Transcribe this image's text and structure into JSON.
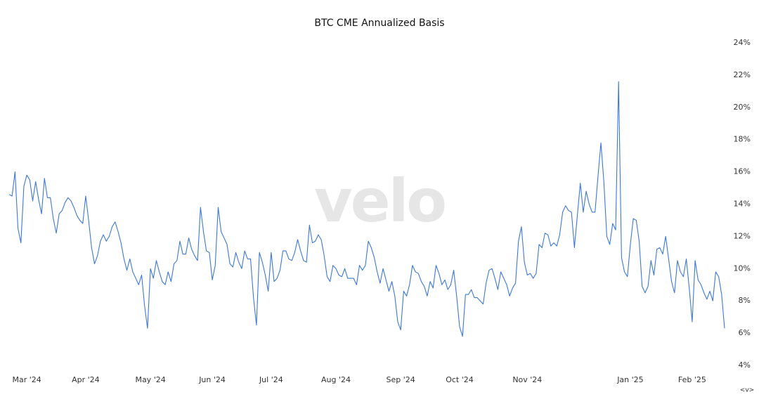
{
  "chart_data": {
    "type": "line",
    "title": "BTC CME Annualized Basis",
    "watermark": "velo",
    "nav_hint": "<v>",
    "color": "#3b78d9",
    "grid": false,
    "y_axis_side": "right",
    "ylim": [
      4,
      24
    ],
    "yticks": [
      {
        "value": 4,
        "label": "4%"
      },
      {
        "value": 6,
        "label": "6%"
      },
      {
        "value": 8,
        "label": "8%"
      },
      {
        "value": 10,
        "label": "10%"
      },
      {
        "value": 12,
        "label": "12%"
      },
      {
        "value": 14,
        "label": "14%"
      },
      {
        "value": 16,
        "label": "16%"
      },
      {
        "value": 18,
        "label": "18%"
      },
      {
        "value": 20,
        "label": "20%"
      },
      {
        "value": 22,
        "label": "22%"
      },
      {
        "value": 24,
        "label": "24%"
      }
    ],
    "categories": [
      null,
      null,
      null,
      null,
      null,
      null,
      "Mar '24",
      null,
      null,
      null,
      null,
      null,
      null,
      null,
      null,
      null,
      null,
      null,
      null,
      null,
      null,
      null,
      null,
      null,
      null,
      null,
      "Apr '24",
      null,
      null,
      null,
      null,
      null,
      null,
      null,
      null,
      null,
      null,
      null,
      null,
      null,
      null,
      null,
      null,
      null,
      null,
      null,
      null,
      null,
      "May '24",
      null,
      null,
      null,
      null,
      null,
      null,
      null,
      null,
      null,
      null,
      null,
      null,
      null,
      null,
      null,
      null,
      null,
      null,
      null,
      null,
      "Jun '24",
      null,
      null,
      null,
      null,
      null,
      null,
      null,
      null,
      null,
      null,
      null,
      null,
      null,
      null,
      null,
      null,
      null,
      null,
      null,
      "Jul '24",
      null,
      null,
      null,
      null,
      null,
      null,
      null,
      null,
      null,
      null,
      null,
      null,
      null,
      null,
      null,
      null,
      null,
      null,
      null,
      null,
      null,
      "Aug '24",
      null,
      null,
      null,
      null,
      null,
      null,
      null,
      null,
      null,
      null,
      null,
      null,
      null,
      null,
      null,
      null,
      null,
      null,
      null,
      null,
      null,
      "Sep '24",
      null,
      null,
      null,
      null,
      null,
      null,
      null,
      null,
      null,
      null,
      null,
      null,
      null,
      null,
      null,
      null,
      null,
      null,
      null,
      "Oct '24",
      null,
      null,
      null,
      null,
      null,
      null,
      null,
      null,
      null,
      null,
      null,
      null,
      null,
      null,
      null,
      null,
      null,
      null,
      null,
      null,
      null,
      null,
      "Nov '24",
      null,
      null,
      null,
      null,
      null,
      null,
      null,
      null,
      null,
      null,
      null,
      null,
      null,
      null,
      null,
      null,
      null,
      null,
      null,
      null,
      null,
      null,
      null,
      null,
      null,
      null,
      null,
      null,
      null,
      null,
      null,
      null,
      null,
      null,
      "Jan '25",
      null,
      null,
      null,
      null,
      null,
      null,
      null,
      null,
      null,
      null,
      null,
      null,
      null,
      null,
      null,
      null,
      null,
      null,
      null,
      null,
      "Feb '25",
      null,
      null,
      null,
      null,
      null,
      null,
      null,
      null,
      null,
      null,
      null
    ],
    "values": [
      14.6,
      14.5,
      16.0,
      12.5,
      11.6,
      15.1,
      15.8,
      15.5,
      14.2,
      15.4,
      14.3,
      13.4,
      15.6,
      14.4,
      14.4,
      13.1,
      12.2,
      13.4,
      13.6,
      14.1,
      14.4,
      14.2,
      13.8,
      13.3,
      13.0,
      12.8,
      14.5,
      13.0,
      11.3,
      10.3,
      10.8,
      11.7,
      12.1,
      11.7,
      12.0,
      12.6,
      12.9,
      12.3,
      11.6,
      10.6,
      9.9,
      10.6,
      9.8,
      9.4,
      9.0,
      9.6,
      7.7,
      6.3,
      10.0,
      9.4,
      10.5,
      9.8,
      9.2,
      9.0,
      9.8,
      9.2,
      10.3,
      10.5,
      11.7,
      10.9,
      10.9,
      11.9,
      11.2,
      10.8,
      10.5,
      13.8,
      12.3,
      11.1,
      11.0,
      9.3,
      10.2,
      13.8,
      12.3,
      11.9,
      11.5,
      10.3,
      10.1,
      11.0,
      10.4,
      10.0,
      11.1,
      10.6,
      10.6,
      8.2,
      6.5,
      11.0,
      10.4,
      9.6,
      8.6,
      11.0,
      9.2,
      9.4,
      9.9,
      11.1,
      11.1,
      10.6,
      10.5,
      11.0,
      11.8,
      11.1,
      10.5,
      10.4,
      12.7,
      11.6,
      11.7,
      12.1,
      11.8,
      10.8,
      9.5,
      9.2,
      10.2,
      10.0,
      9.6,
      9.5,
      10.0,
      9.4,
      9.4,
      9.4,
      9.0,
      10.2,
      9.9,
      10.2,
      11.7,
      11.3,
      10.7,
      9.8,
      9.1,
      10.0,
      9.3,
      8.6,
      9.2,
      8.3,
      6.7,
      6.2,
      8.6,
      8.3,
      9.0,
      10.2,
      9.8,
      9.7,
      9.2,
      8.9,
      8.3,
      9.2,
      8.8,
      10.2,
      9.7,
      9.0,
      9.3,
      8.7,
      9.0,
      9.9,
      8.3,
      6.4,
      5.8,
      8.4,
      8.4,
      8.7,
      8.2,
      8.2,
      8.0,
      7.8,
      9.1,
      9.9,
      10.0,
      9.4,
      8.7,
      9.8,
      9.4,
      9.0,
      8.3,
      8.8,
      9.1,
      11.7,
      12.6,
      10.4,
      9.6,
      9.7,
      9.4,
      9.7,
      11.5,
      11.3,
      12.2,
      12.1,
      11.4,
      11.6,
      11.4,
      12.1,
      13.5,
      13.9,
      13.6,
      13.5,
      11.3,
      13.3,
      15.3,
      13.5,
      14.8,
      14.0,
      13.5,
      13.5,
      15.7,
      17.8,
      15.4,
      12.0,
      11.5,
      12.8,
      12.4,
      21.6,
      10.7,
      9.8,
      9.5,
      11.5,
      13.1,
      13.0,
      11.7,
      8.9,
      8.5,
      8.9,
      10.5,
      9.6,
      11.2,
      11.3,
      10.9,
      12.0,
      10.6,
      9.2,
      8.5,
      10.5,
      9.8,
      9.5,
      10.6,
      8.8,
      6.7,
      10.5,
      9.3,
      9.0,
      8.5,
      8.1,
      8.6,
      8.0,
      9.8,
      9.5,
      8.4,
      6.3
    ]
  }
}
